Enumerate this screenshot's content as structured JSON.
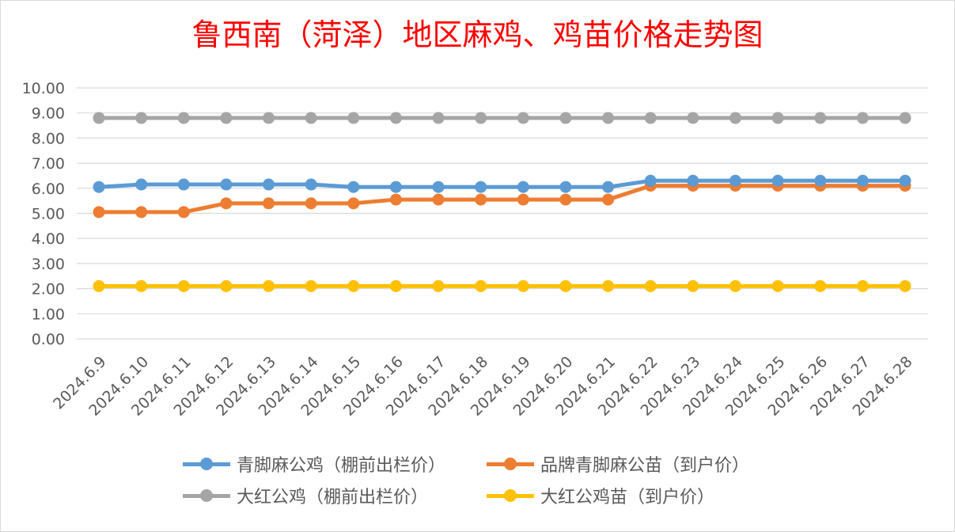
{
  "chart_data": {
    "type": "line",
    "title": "鲁西南（菏泽）地区麻鸡、鸡苗价格走势图",
    "xlabel": "",
    "ylabel": "",
    "ylim": [
      0,
      10
    ],
    "y_ticks": [
      "0.00",
      "1.00",
      "2.00",
      "3.00",
      "4.00",
      "5.00",
      "6.00",
      "7.00",
      "8.00",
      "9.00",
      "10.00"
    ],
    "grid": true,
    "legend_position": "bottom",
    "categories": [
      "2024.6.9",
      "2024.6.10",
      "2024.6.11",
      "2024.6.12",
      "2024.6.13",
      "2024.6.14",
      "2024.6.15",
      "2024.6.16",
      "2024.6.17",
      "2024.6.18",
      "2024.6.19",
      "2024.6.20",
      "2024.6.21",
      "2024.6.22",
      "2024.6.23",
      "2024.6.24",
      "2024.6.25",
      "2024.6.26",
      "2024.6.27",
      "2024.6.28"
    ],
    "series": [
      {
        "name": "青脚麻公鸡（棚前出栏价）",
        "color": "#5b9bd5",
        "values": [
          6.05,
          6.15,
          6.15,
          6.15,
          6.15,
          6.15,
          6.05,
          6.05,
          6.05,
          6.05,
          6.05,
          6.05,
          6.05,
          6.3,
          6.3,
          6.3,
          6.3,
          6.3,
          6.3,
          6.3
        ]
      },
      {
        "name": "品牌青脚麻公苗（到户价）",
        "color": "#ed7d31",
        "values": [
          5.05,
          5.05,
          5.05,
          5.4,
          5.4,
          5.4,
          5.4,
          5.55,
          5.55,
          5.55,
          5.55,
          5.55,
          5.55,
          6.1,
          6.1,
          6.1,
          6.1,
          6.1,
          6.1,
          6.1
        ]
      },
      {
        "name": "大红公鸡（棚前出栏价）",
        "color": "#a5a5a5",
        "values": [
          8.8,
          8.8,
          8.8,
          8.8,
          8.8,
          8.8,
          8.8,
          8.8,
          8.8,
          8.8,
          8.8,
          8.8,
          8.8,
          8.8,
          8.8,
          8.8,
          8.8,
          8.8,
          8.8,
          8.8
        ]
      },
      {
        "name": "大红公鸡苗（到户价）",
        "color": "#ffc000",
        "values": [
          2.1,
          2.1,
          2.1,
          2.1,
          2.1,
          2.1,
          2.1,
          2.1,
          2.1,
          2.1,
          2.1,
          2.1,
          2.1,
          2.1,
          2.1,
          2.1,
          2.1,
          2.1,
          2.1,
          2.1
        ]
      }
    ]
  }
}
